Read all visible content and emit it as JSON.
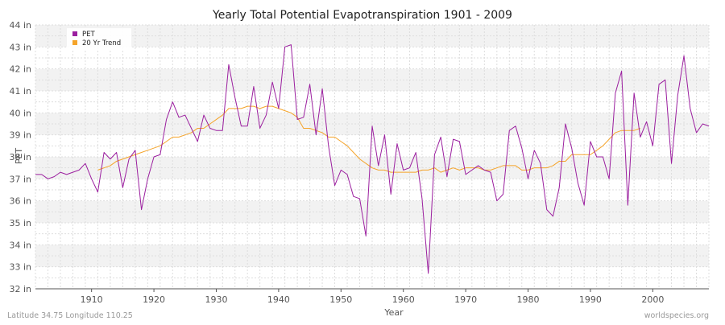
{
  "chart_data": {
    "type": "line",
    "title": "Yearly Total Potential Evapotranspiration 1901 - 2009",
    "xlabel": "Year",
    "ylabel": "PET",
    "xlim": [
      1901,
      2009
    ],
    "ylim": [
      32,
      44
    ],
    "x_ticks": [
      1910,
      1920,
      1930,
      1940,
      1950,
      1960,
      1970,
      1980,
      1990,
      2000
    ],
    "y_ticks": [
      32,
      33,
      34,
      35,
      36,
      37,
      38,
      39,
      40,
      41,
      42,
      43,
      44
    ],
    "y_tick_labels": [
      "32 in",
      "33 in",
      "34 in",
      "35 in",
      "36 in",
      "37 in",
      "38 in",
      "39 in",
      "40 in",
      "41 in",
      "42 in",
      "43 in",
      "44 in"
    ],
    "legend": {
      "position": "top-left"
    },
    "series": [
      {
        "name": "PET",
        "color": "#9b1f9f",
        "x_start": 1901,
        "values": [
          37.2,
          37.2,
          37.0,
          37.1,
          37.3,
          37.2,
          37.3,
          37.4,
          37.7,
          37.0,
          36.4,
          38.2,
          37.9,
          38.2,
          36.6,
          37.9,
          38.3,
          35.6,
          37.0,
          38.0,
          38.1,
          39.7,
          40.5,
          39.8,
          39.9,
          39.3,
          38.7,
          39.9,
          39.3,
          39.2,
          39.2,
          42.2,
          40.7,
          39.4,
          39.4,
          41.2,
          39.3,
          39.9,
          41.4,
          40.2,
          43.0,
          43.1,
          39.7,
          39.8,
          41.3,
          39.0,
          41.1,
          38.5,
          36.7,
          37.4,
          37.2,
          36.2,
          36.1,
          34.4,
          39.4,
          37.6,
          39.0,
          36.3,
          38.6,
          37.4,
          37.5,
          38.2,
          36.1,
          32.7,
          38.1,
          38.9,
          37.1,
          38.8,
          38.7,
          37.2,
          37.4,
          37.6,
          37.4,
          37.3,
          36.0,
          36.3,
          39.2,
          39.4,
          38.4,
          37.0,
          38.3,
          37.7,
          35.6,
          35.3,
          36.6,
          39.5,
          38.4,
          36.8,
          35.8,
          38.7,
          38.0,
          38.0,
          37.0,
          40.9,
          41.9,
          35.8,
          40.9,
          38.9,
          39.6,
          38.5,
          41.3,
          41.5,
          37.7,
          40.8,
          42.6,
          40.2,
          39.1,
          39.5,
          39.4
        ]
      },
      {
        "name": "20 Yr Trend",
        "color": "#f5a42a",
        "x_start": 1911,
        "values": [
          37.4,
          37.5,
          37.6,
          37.8,
          37.9,
          38.0,
          38.1,
          38.2,
          38.3,
          38.4,
          38.5,
          38.7,
          38.9,
          38.9,
          39.0,
          39.1,
          39.3,
          39.3,
          39.5,
          39.7,
          39.9,
          40.2,
          40.2,
          40.2,
          40.3,
          40.3,
          40.2,
          40.3,
          40.3,
          40.2,
          40.1,
          40.0,
          39.8,
          39.3,
          39.3,
          39.2,
          39.1,
          38.9,
          38.9,
          38.7,
          38.5,
          38.2,
          37.9,
          37.7,
          37.5,
          37.4,
          37.4,
          37.3,
          37.3,
          37.3,
          37.3,
          37.3,
          37.4,
          37.4,
          37.5,
          37.3,
          37.4,
          37.5,
          37.4,
          37.5,
          37.5,
          37.5,
          37.4,
          37.4,
          37.5,
          37.6,
          37.6,
          37.6,
          37.4,
          37.4,
          37.5,
          37.5,
          37.5,
          37.6,
          37.8,
          37.8,
          38.1,
          38.1,
          38.1,
          38.1,
          38.3,
          38.5,
          38.8,
          39.1,
          39.2,
          39.2,
          39.2,
          39.3
        ]
      }
    ]
  },
  "footer": {
    "left": "Latitude 34.75 Longitude 110.25",
    "right": "worldspecies.org"
  }
}
